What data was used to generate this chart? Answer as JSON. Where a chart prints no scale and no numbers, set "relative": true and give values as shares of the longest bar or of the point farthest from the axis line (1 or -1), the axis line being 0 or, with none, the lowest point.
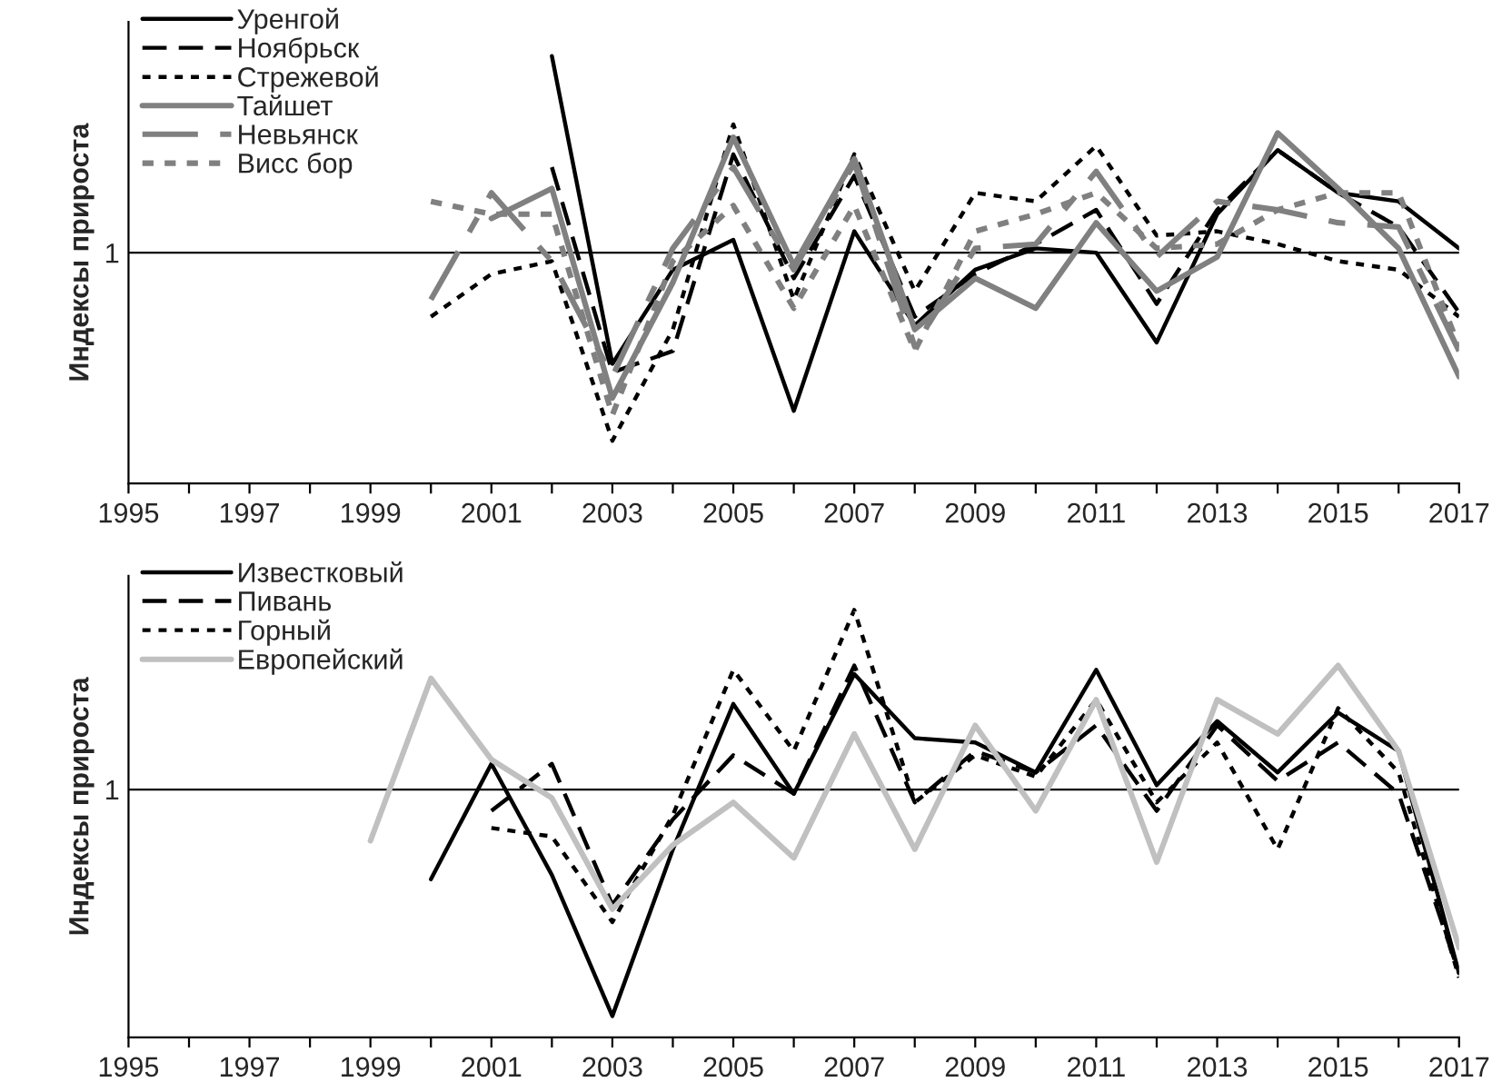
{
  "chart_data": [
    {
      "type": "line",
      "relative": true,
      "ylabel": "Индексы прироста",
      "xlim": [
        1995,
        2017
      ],
      "xticks": [
        1995,
        {
          "value": 1996,
          "label": null
        },
        1997,
        {
          "value": 1998,
          "label": null
        },
        1999,
        {
          "value": 2000,
          "label": null
        },
        2001,
        {
          "value": 2002,
          "label": null
        },
        2003,
        {
          "value": 2004,
          "label": null
        },
        2005,
        {
          "value": 2006,
          "label": null
        },
        2007,
        {
          "value": 2008,
          "label": null
        },
        2009,
        {
          "value": 2010,
          "label": null
        },
        2011,
        {
          "value": 2012,
          "label": null
        },
        2013,
        {
          "value": 2014,
          "label": null
        },
        2015,
        {
          "value": 2016,
          "label": null
        },
        2017
      ],
      "x": [
        2000,
        2001,
        2002,
        2003,
        2004,
        2005,
        2006,
        2007,
        2008,
        2009,
        2010,
        2011,
        2012,
        2013,
        2014,
        2015,
        2016,
        2017
      ],
      "legend": "top left",
      "grid": false,
      "ref_lines": [
        {
          "axis": "y",
          "value": 0.54,
          "label": "1",
          "color": "#000000"
        }
      ],
      "series": [
        {
          "name": "Уренгой",
          "color": "#000000",
          "line_style": "solid",
          "values": [
            null,
            null,
            1.0,
            0.28,
            0.5,
            0.57,
            0.17,
            0.59,
            0.37,
            0.5,
            0.55,
            0.54,
            0.33,
            0.63,
            0.78,
            0.68,
            0.66,
            0.55
          ]
        },
        {
          "name": "Ноябрьск",
          "color": "#000000",
          "line_style": "dashed",
          "values": [
            null,
            null,
            0.74,
            0.26,
            0.31,
            0.77,
            0.48,
            0.72,
            0.39,
            0.49,
            0.56,
            0.64,
            0.42,
            0.64,
            0.78,
            0.68,
            0.6,
            0.4
          ]
        },
        {
          "name": "Стрежевой",
          "color": "#000000",
          "line_style": "dotted",
          "values": [
            0.39,
            0.49,
            0.52,
            0.1,
            0.36,
            0.84,
            0.43,
            0.77,
            0.45,
            0.68,
            0.66,
            0.79,
            0.58,
            0.59,
            0.56,
            0.52,
            0.5,
            0.39
          ]
        },
        {
          "name": "Тайшет",
          "color": "#808080",
          "line_style": "solid",
          "values": [
            null,
            0.62,
            0.69,
            0.2,
            0.47,
            0.81,
            0.51,
            0.76,
            0.36,
            0.48,
            0.41,
            0.61,
            0.45,
            0.53,
            0.82,
            0.69,
            0.55,
            0.25
          ]
        },
        {
          "name": "Невьянск",
          "color": "#808080",
          "line_style": "dashed",
          "values": [
            0.43,
            0.68,
            0.52,
            0.25,
            0.55,
            0.74,
            0.5,
            0.75,
            0.32,
            0.55,
            0.56,
            0.73,
            0.53,
            0.66,
            0.64,
            0.61,
            0.6,
            0.31
          ]
        },
        {
          "name": "Висс бор",
          "color": "#808080",
          "line_style": "dotted",
          "values": [
            0.66,
            0.63,
            0.63,
            0.16,
            0.52,
            0.65,
            0.41,
            0.65,
            0.31,
            0.59,
            0.63,
            0.68,
            0.55,
            0.56,
            0.64,
            0.68,
            0.68,
            0.32
          ]
        }
      ]
    },
    {
      "type": "line",
      "relative": true,
      "ylabel": "Индексы прироста",
      "xlim": [
        1995,
        2017
      ],
      "xticks": [
        1995,
        {
          "value": 1996,
          "label": null
        },
        1997,
        {
          "value": 1998,
          "label": null
        },
        1999,
        {
          "value": 2000,
          "label": null
        },
        2001,
        {
          "value": 2002,
          "label": null
        },
        2003,
        {
          "value": 2004,
          "label": null
        },
        2005,
        {
          "value": 2006,
          "label": null
        },
        2007,
        {
          "value": 2008,
          "label": null
        },
        2009,
        {
          "value": 2010,
          "label": null
        },
        2011,
        {
          "value": 2012,
          "label": null
        },
        2013,
        {
          "value": 2014,
          "label": null
        },
        2015,
        {
          "value": 2016,
          "label": null
        },
        2017
      ],
      "x": [
        1999,
        2000,
        2001,
        2002,
        2003,
        2004,
        2005,
        2006,
        2007,
        2008,
        2009,
        2010,
        2011,
        2012,
        2013,
        2014,
        2015,
        2016,
        2017
      ],
      "legend": "top left",
      "grid": false,
      "ref_lines": [
        {
          "axis": "y",
          "value": 0.58,
          "label": "1",
          "color": "#000000"
        }
      ],
      "series": [
        {
          "name": "Известковый",
          "color": "#000000",
          "line_style": "solid",
          "values": [
            null,
            0.37,
            0.64,
            0.38,
            0.05,
            0.44,
            0.78,
            0.57,
            0.85,
            0.7,
            0.69,
            0.62,
            0.86,
            0.59,
            0.74,
            0.62,
            0.76,
            0.67,
            0.15
          ]
        },
        {
          "name": "Пивань",
          "color": "#000000",
          "line_style": "dashed",
          "values": [
            null,
            null,
            0.53,
            0.64,
            0.31,
            0.51,
            0.66,
            0.57,
            0.87,
            0.55,
            0.67,
            0.62,
            0.73,
            0.53,
            0.73,
            0.6,
            0.69,
            0.57,
            0.15
          ]
        },
        {
          "name": "Горный",
          "color": "#000000",
          "line_style": "dotted",
          "values": [
            null,
            null,
            0.49,
            0.47,
            0.27,
            0.52,
            0.86,
            0.67,
            1.0,
            0.55,
            0.66,
            0.61,
            0.79,
            0.55,
            0.69,
            0.44,
            0.77,
            0.62,
            0.14
          ]
        },
        {
          "name": "Европейский",
          "color": "#c0c0c0",
          "line_style": "solid",
          "values": [
            0.46,
            0.84,
            0.65,
            0.56,
            0.3,
            0.45,
            0.55,
            0.42,
            0.71,
            0.44,
            0.73,
            0.53,
            0.79,
            0.41,
            0.79,
            0.71,
            0.87,
            0.67,
            0.21
          ]
        }
      ]
    }
  ]
}
